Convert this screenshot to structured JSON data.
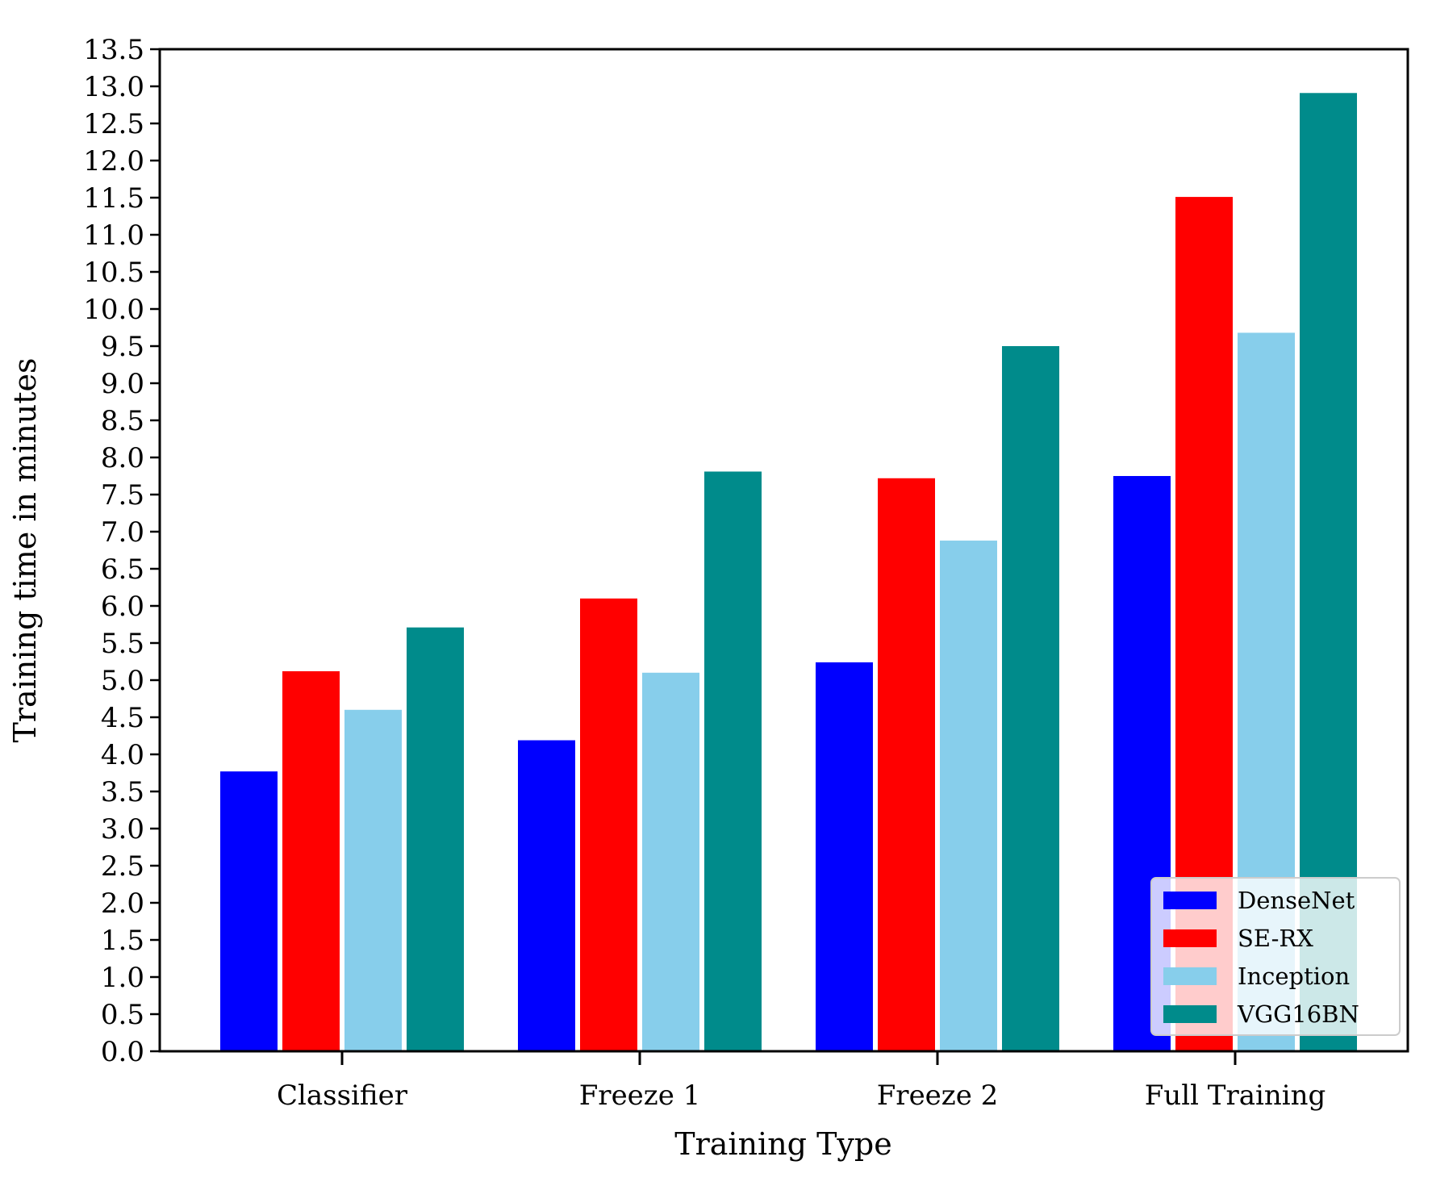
{
  "chart_data": {
    "type": "bar",
    "title": "",
    "xlabel": "Training Type",
    "ylabel": "Training time in minutes",
    "categories": [
      "Classifier",
      "Freeze 1",
      "Freeze 2",
      "Full Training"
    ],
    "series": [
      {
        "name": "DenseNet",
        "color": "#0000ff",
        "values": [
          3.77,
          4.19,
          5.24,
          7.75
        ]
      },
      {
        "name": "SE-RX",
        "color": "#ff0000",
        "values": [
          5.12,
          6.1,
          7.72,
          11.51
        ]
      },
      {
        "name": "Inception",
        "color": "#87ceeb",
        "values": [
          4.6,
          5.1,
          6.88,
          9.68
        ]
      },
      {
        "name": "VGG16BN",
        "color": "#008b8b",
        "values": [
          5.71,
          7.81,
          9.5,
          12.91
        ]
      }
    ],
    "ylim": [
      0,
      13.5
    ],
    "yticks": [
      "0.0",
      "0.5",
      "1.0",
      "1.5",
      "2.0",
      "2.5",
      "3.0",
      "3.5",
      "4.0",
      "4.5",
      "5.0",
      "5.5",
      "6.0",
      "6.5",
      "7.0",
      "7.5",
      "8.0",
      "8.5",
      "9.0",
      "9.5",
      "10.0",
      "10.5",
      "11.0",
      "11.5",
      "12.0",
      "12.5",
      "13.0",
      "13.5"
    ],
    "legend_position": "lower-right",
    "grid": false
  }
}
